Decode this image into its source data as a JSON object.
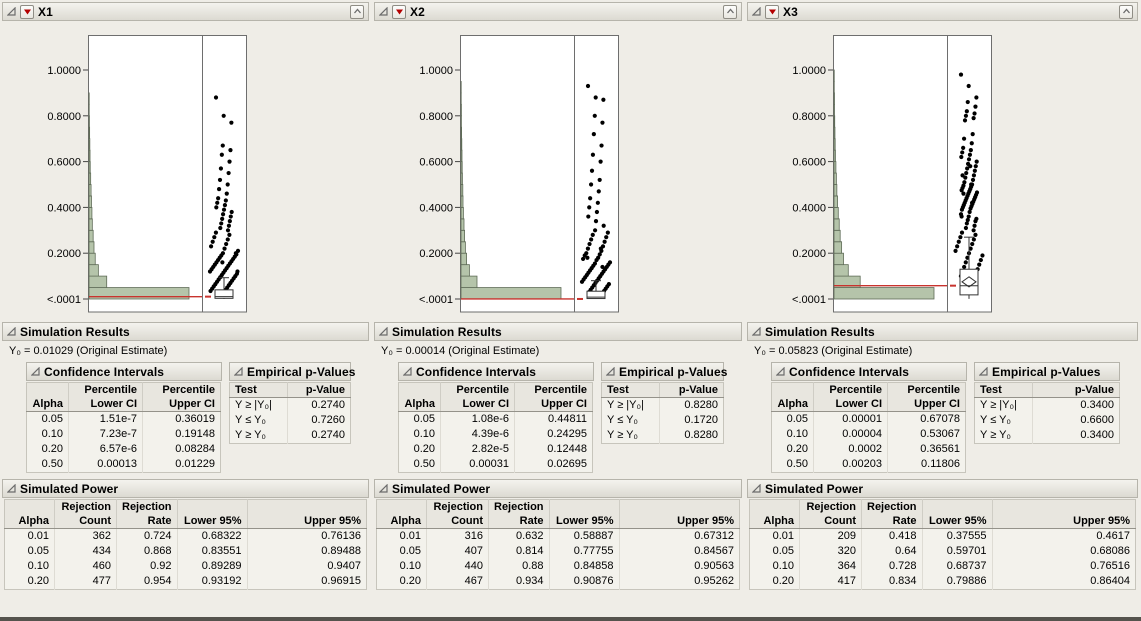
{
  "labels": {
    "simulation_results": "Simulation Results",
    "confidence_intervals": "Confidence Intervals",
    "empirical_p_values": "Empirical p-Values",
    "simulated_power": "Simulated Power"
  },
  "icons": {
    "disclosure": "open-wedge-triangle",
    "menu": "red-triangle",
    "header_right": "caret-square"
  },
  "panels": [
    {
      "title": "X1",
      "estimate_line": "Y₀ = 0.01029 (Original Estimate)",
      "ci": {
        "headers": [
          [
            "",
            "Percentile",
            "Percentile"
          ],
          [
            "Alpha",
            "Lower CI",
            "Upper CI"
          ]
        ],
        "rows": [
          [
            "0.05",
            "1.51e-7",
            "0.36019"
          ],
          [
            "0.10",
            "7.23e-7",
            "0.19148"
          ],
          [
            "0.20",
            "6.57e-6",
            "0.08284"
          ],
          [
            "0.50",
            "0.00013",
            "0.01229"
          ]
        ]
      },
      "pvals": {
        "headers": [
          [
            "Test",
            "p-Value"
          ]
        ],
        "rows": [
          [
            "Y ≥ |Y₀|",
            "0.2740"
          ],
          [
            "Y ≤ Y₀",
            "0.7260"
          ],
          [
            "Y ≥ Y₀",
            "0.2740"
          ]
        ]
      },
      "power": {
        "headers": [
          [
            "",
            "Rejection",
            "Rejection",
            "",
            ""
          ],
          [
            "Alpha",
            "Count",
            "Rate",
            "Lower 95%",
            "Upper 95%"
          ]
        ],
        "rows": [
          [
            "0.01",
            "362",
            "0.724",
            "0.68322",
            "0.76136"
          ],
          [
            "0.05",
            "434",
            "0.868",
            "0.83551",
            "0.89488"
          ],
          [
            "0.10",
            "460",
            "0.92",
            "0.89289",
            "0.9407"
          ],
          [
            "0.20",
            "477",
            "0.954",
            "0.93192",
            "0.96915"
          ]
        ]
      }
    },
    {
      "title": "X2",
      "estimate_line": "Y₀ = 0.00014 (Original Estimate)",
      "ci": {
        "headers": [
          [
            "",
            "Percentile",
            "Percentile"
          ],
          [
            "Alpha",
            "Lower CI",
            "Upper CI"
          ]
        ],
        "rows": [
          [
            "0.05",
            "1.08e-6",
            "0.44811"
          ],
          [
            "0.10",
            "4.39e-6",
            "0.24295"
          ],
          [
            "0.20",
            "2.82e-5",
            "0.12448"
          ],
          [
            "0.50",
            "0.00031",
            "0.02695"
          ]
        ]
      },
      "pvals": {
        "headers": [
          [
            "Test",
            "p-Value"
          ]
        ],
        "rows": [
          [
            "Y ≥ |Y₀|",
            "0.8280"
          ],
          [
            "Y ≤ Y₀",
            "0.1720"
          ],
          [
            "Y ≥ Y₀",
            "0.8280"
          ]
        ]
      },
      "power": {
        "headers": [
          [
            "",
            "Rejection",
            "Rejection",
            "",
            ""
          ],
          [
            "Alpha",
            "Count",
            "Rate",
            "Lower 95%",
            "Upper 95%"
          ]
        ],
        "rows": [
          [
            "0.01",
            "316",
            "0.632",
            "0.58887",
            "0.67312"
          ],
          [
            "0.05",
            "407",
            "0.814",
            "0.77755",
            "0.84567"
          ],
          [
            "0.10",
            "440",
            "0.88",
            "0.84858",
            "0.90563"
          ],
          [
            "0.20",
            "467",
            "0.934",
            "0.90876",
            "0.95262"
          ]
        ]
      }
    },
    {
      "title": "X3",
      "estimate_line": "Y₀ = 0.05823 (Original Estimate)",
      "ci": {
        "headers": [
          [
            "",
            "Percentile",
            "Percentile"
          ],
          [
            "Alpha",
            "Lower CI",
            "Upper CI"
          ]
        ],
        "rows": [
          [
            "0.05",
            "0.00001",
            "0.67078"
          ],
          [
            "0.10",
            "0.00004",
            "0.53067"
          ],
          [
            "0.20",
            "0.0002",
            "0.36561"
          ],
          [
            "0.50",
            "0.00203",
            "0.11806"
          ]
        ]
      },
      "pvals": {
        "headers": [
          [
            "Test",
            "p-Value"
          ]
        ],
        "rows": [
          [
            "Y ≥ |Y₀|",
            "0.3400"
          ],
          [
            "Y ≤ Y₀",
            "0.6600"
          ],
          [
            "Y ≥ Y₀",
            "0.3400"
          ]
        ]
      },
      "power": {
        "headers": [
          [
            "",
            "Rejection",
            "Rejection",
            "",
            ""
          ],
          [
            "Alpha",
            "Count",
            "Rate",
            "Lower 95%",
            "Upper 95%"
          ]
        ],
        "rows": [
          [
            "0.01",
            "209",
            "0.418",
            "0.37555",
            "0.4617"
          ],
          [
            "0.05",
            "320",
            "0.64",
            "0.59701",
            "0.68086"
          ],
          [
            "0.10",
            "364",
            "0.728",
            "0.68737",
            "0.76516"
          ],
          [
            "0.20",
            "417",
            "0.834",
            "0.79886",
            "0.86404"
          ]
        ]
      }
    }
  ],
  "chart_data": [
    {
      "panel": "X1",
      "type": "scatter",
      "title": "Simulated estimates for X1 (histogram + jittered points + box plot)",
      "ylim": [
        0,
        1.15
      ],
      "y_axis_ticks": [
        "1.0000",
        "0.8000",
        "0.6000",
        "0.4000",
        "0.2000",
        "<.0001"
      ],
      "y_tick_values": [
        1.0,
        0.8,
        0.6,
        0.4,
        0.2,
        0.0
      ],
      "y0_reference": 0.01029,
      "reference_color": "#c8332e",
      "histogram_fill": "#b5c4aa",
      "histogram": {
        "bin_width": 0.05,
        "counts": [
          480,
          85,
          45,
          30,
          24,
          20,
          16,
          14,
          12,
          10,
          8,
          6,
          5,
          4,
          3,
          2,
          1,
          1,
          0,
          0
        ]
      },
      "scatter_y": [
        0.88,
        0.8,
        0.77,
        0.67,
        0.65,
        0.63,
        0.6,
        0.57,
        0.55,
        0.52,
        0.5,
        0.48,
        0.46,
        0.44,
        0.43,
        0.42,
        0.41,
        0.4,
        0.39,
        0.38,
        0.37,
        0.36,
        0.35,
        0.34,
        0.33,
        0.32,
        0.31,
        0.3,
        0.29,
        0.28,
        0.27,
        0.26,
        0.25,
        0.24,
        0.23,
        0.22,
        0.21,
        0.2,
        0.195,
        0.19,
        0.185,
        0.18,
        0.175,
        0.17,
        0.165,
        0.16,
        0.155,
        0.15,
        0.145,
        0.14,
        0.135,
        0.13,
        0.125,
        0.12,
        0.115,
        0.11,
        0.105,
        0.1,
        0.095,
        0.09,
        0.085,
        0.08,
        0.075,
        0.07,
        0.065,
        0.06,
        0.055,
        0.05,
        0.045,
        0.04,
        0.035,
        0.03,
        0.12,
        0.16,
        0.2
      ],
      "box": {
        "whisker_low": 0.0005,
        "q1": 0.003,
        "median": 0.0103,
        "q3": 0.04,
        "whisker_high": 0.093
      }
    },
    {
      "panel": "X2",
      "type": "scatter",
      "title": "Simulated estimates for X2 (histogram + jittered points + box plot)",
      "ylim": [
        0,
        1.15
      ],
      "y_axis_ticks": [
        "1.0000",
        "0.8000",
        "0.6000",
        "0.4000",
        "0.2000",
        "<.0001"
      ],
      "y_tick_values": [
        1.0,
        0.8,
        0.6,
        0.4,
        0.2,
        0.0
      ],
      "y0_reference": 0.00014,
      "reference_color": "#c8332e",
      "histogram_fill": "#b5c4aa",
      "histogram": {
        "bin_width": 0.05,
        "counts": [
          500,
          80,
          42,
          28,
          22,
          18,
          15,
          12,
          10,
          9,
          7,
          6,
          5,
          4,
          3,
          2,
          2,
          1,
          1,
          0
        ]
      },
      "scatter_y": [
        0.93,
        0.88,
        0.87,
        0.8,
        0.77,
        0.72,
        0.67,
        0.63,
        0.6,
        0.56,
        0.52,
        0.5,
        0.47,
        0.44,
        0.42,
        0.4,
        0.38,
        0.36,
        0.34,
        0.32,
        0.3,
        0.29,
        0.28,
        0.27,
        0.26,
        0.25,
        0.24,
        0.23,
        0.22,
        0.21,
        0.2,
        0.195,
        0.19,
        0.18,
        0.175,
        0.17,
        0.16,
        0.155,
        0.15,
        0.145,
        0.14,
        0.135,
        0.13,
        0.125,
        0.12,
        0.115,
        0.11,
        0.105,
        0.1,
        0.095,
        0.09,
        0.085,
        0.08,
        0.075,
        0.07,
        0.065,
        0.06,
        0.055,
        0.05,
        0.045,
        0.04,
        0.035,
        0.03,
        0.14,
        0.18,
        0.22
      ],
      "box": {
        "whisker_low": 0.0004,
        "q1": 0.002,
        "median": 0.008,
        "q3": 0.034,
        "whisker_high": 0.08
      }
    },
    {
      "panel": "X3",
      "type": "scatter",
      "title": "Simulated estimates for X3 (histogram + jittered points + box plot)",
      "ylim": [
        0,
        1.15
      ],
      "y_axis_ticks": [
        "1.0000",
        "0.8000",
        "0.6000",
        "0.4000",
        "0.2000",
        "<.0001"
      ],
      "y_tick_values": [
        1.0,
        0.8,
        0.6,
        0.4,
        0.2,
        0.0
      ],
      "y0_reference": 0.05823,
      "reference_color": "#c8332e",
      "histogram_fill": "#b5c4aa",
      "histogram": {
        "bin_width": 0.05,
        "counts": [
          420,
          110,
          60,
          40,
          32,
          26,
          22,
          18,
          15,
          12,
          10,
          8,
          6,
          5,
          4,
          3,
          2,
          2,
          1,
          1
        ]
      },
      "scatter_y": [
        0.98,
        0.93,
        0.88,
        0.86,
        0.84,
        0.82,
        0.81,
        0.8,
        0.79,
        0.78,
        0.72,
        0.7,
        0.68,
        0.66,
        0.65,
        0.64,
        0.63,
        0.62,
        0.61,
        0.6,
        0.59,
        0.58,
        0.57,
        0.56,
        0.55,
        0.54,
        0.53,
        0.52,
        0.51,
        0.5,
        0.495,
        0.49,
        0.485,
        0.48,
        0.475,
        0.47,
        0.465,
        0.46,
        0.455,
        0.45,
        0.445,
        0.44,
        0.435,
        0.43,
        0.425,
        0.42,
        0.415,
        0.41,
        0.405,
        0.4,
        0.395,
        0.39,
        0.38,
        0.37,
        0.36,
        0.35,
        0.345,
        0.34,
        0.33,
        0.32,
        0.31,
        0.3,
        0.29,
        0.28,
        0.27,
        0.26,
        0.25,
        0.24,
        0.23,
        0.22,
        0.21,
        0.2,
        0.19,
        0.18,
        0.17,
        0.16,
        0.15,
        0.14,
        0.13,
        0.12,
        0.11,
        0.1,
        0.42,
        0.46,
        0.5,
        0.54,
        0.58,
        0.36
      ],
      "box": {
        "whisker_low": 0.0005,
        "q1": 0.018,
        "median": 0.058,
        "q3": 0.13,
        "whisker_high": 0.27,
        "mean": 0.075
      }
    }
  ]
}
